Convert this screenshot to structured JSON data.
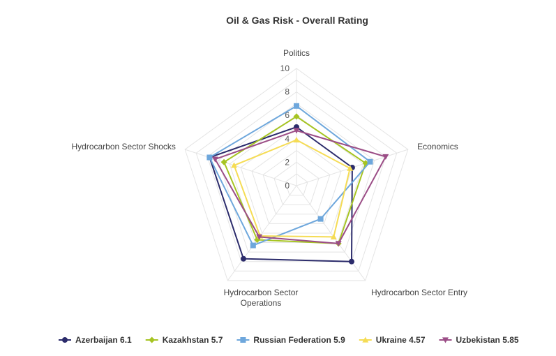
{
  "chart_data": {
    "type": "radar",
    "title": "Oil & Gas Risk - Overall Rating",
    "axes": [
      "Politics",
      "Economics",
      "Hydrocarbon Sector Entry",
      "Hydrocarbon Sector Operations",
      "Hydrocarbon Sector Shocks"
    ],
    "axis_label_lines": [
      [
        "Politics"
      ],
      [
        "Economics"
      ],
      [
        "Hydrocarbon Sector Entry"
      ],
      [
        "Hydrocarbon Sector",
        "Operations"
      ],
      [
        "Hydrocarbon Sector Shocks"
      ]
    ],
    "rlim": [
      0,
      10
    ],
    "ticks": [
      0,
      2,
      4,
      6,
      8,
      10
    ],
    "grid": true,
    "legend_position": "bottom",
    "series": [
      {
        "name": "Azerbaijan",
        "legend_label": "Azerbaijan 6.1",
        "color": "#2b2b6b",
        "marker": "circle",
        "values": [
          5.0,
          5.0,
          8.0,
          7.7,
          7.8
        ]
      },
      {
        "name": "Kazakhstan",
        "legend_label": "Kazakhstan 5.7",
        "color": "#a6c422",
        "marker": "diamond",
        "values": [
          5.9,
          6.2,
          6.1,
          5.7,
          6.5
        ]
      },
      {
        "name": "Russian Federation",
        "legend_label": "Russian Federation 5.9",
        "color": "#6ea7dc",
        "marker": "square",
        "values": [
          6.8,
          6.6,
          3.5,
          6.3,
          7.8
        ]
      },
      {
        "name": "Ukraine",
        "legend_label": "Ukraine 4.57",
        "color": "#f5dc55",
        "marker": "triangle",
        "values": [
          3.9,
          4.8,
          5.4,
          5.3,
          5.6
        ]
      },
      {
        "name": "Uzbekistan",
        "legend_label": "Uzbekistan 5.85",
        "color": "#9b4d86",
        "marker": "triangle-down",
        "values": [
          4.7,
          8.0,
          6.1,
          5.4,
          7.3
        ]
      }
    ]
  }
}
